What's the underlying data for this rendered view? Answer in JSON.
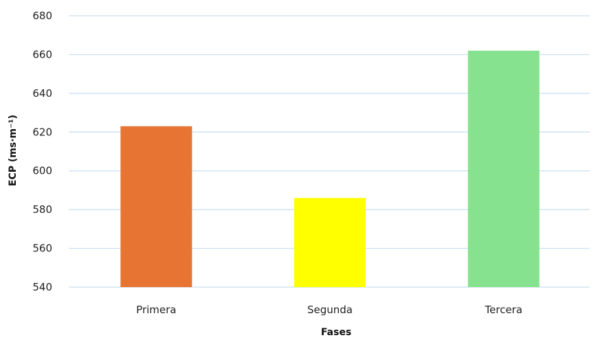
{
  "chart_data": {
    "type": "bar",
    "categories": [
      "Primera",
      "Segunda",
      "Tercera"
    ],
    "values": [
      623,
      586,
      662
    ],
    "colors": [
      "#E87434",
      "#FFFF00",
      "#86E28E"
    ],
    "title": "",
    "xlabel": "Fases",
    "ylabel": "ECP (ms·m⁻¹)",
    "ylim": [
      540,
      680
    ],
    "yticks": [
      540,
      560,
      580,
      600,
      620,
      640,
      660,
      680
    ],
    "grid": true,
    "gridline_color": "#C9DDEF",
    "legend": "none"
  }
}
